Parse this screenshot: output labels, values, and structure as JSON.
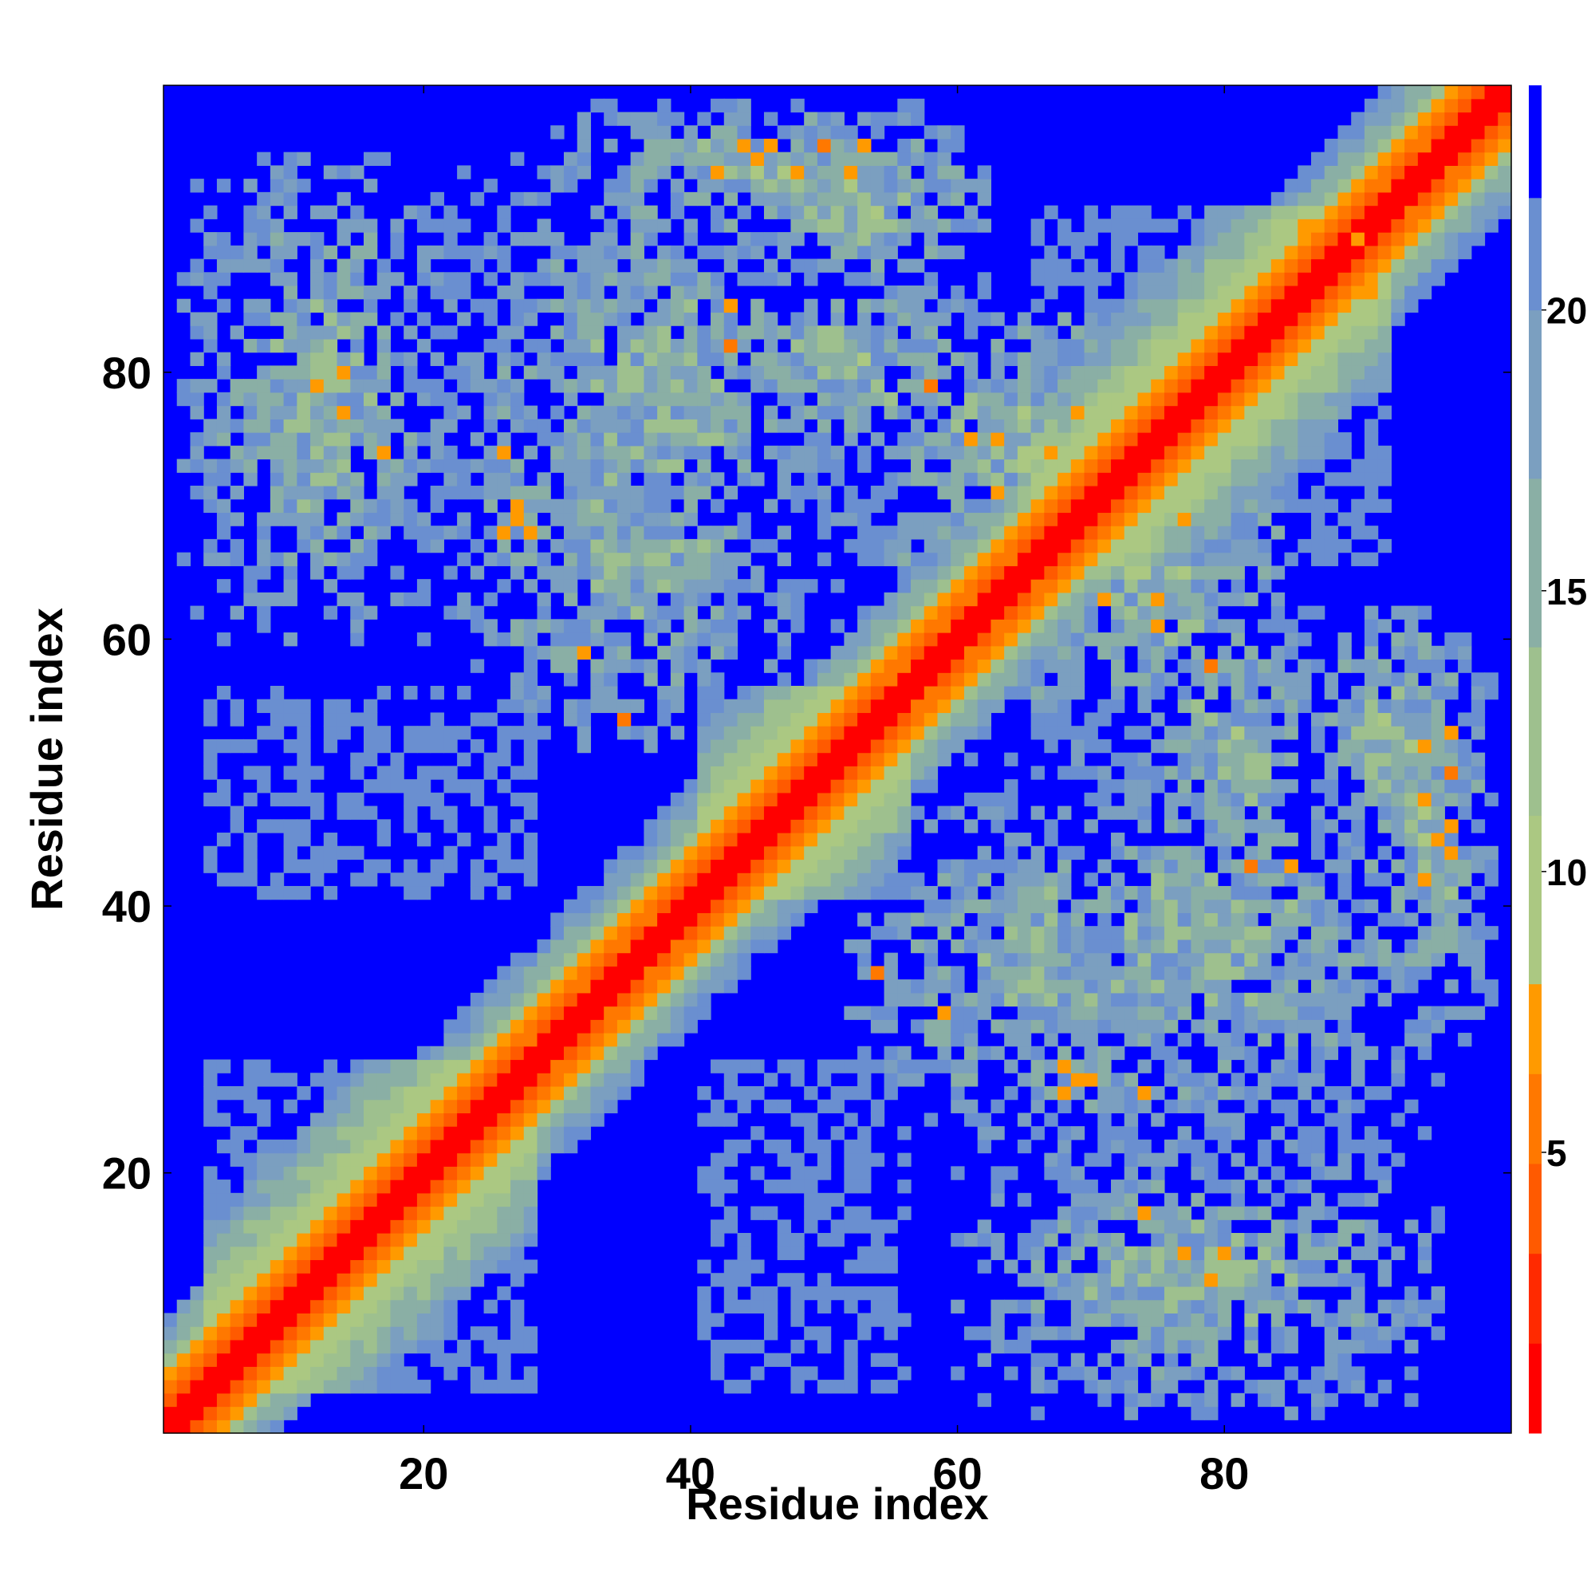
{
  "chart_data": {
    "type": "heatmap",
    "title": "",
    "xlabel": "Residue index",
    "ylabel": "Residue index",
    "n_residues": 101,
    "xlim": [
      0.5,
      101.5
    ],
    "ylim": [
      0.5,
      101.5
    ],
    "x_ticks": [
      20,
      40,
      60,
      80
    ],
    "y_ticks": [
      20,
      40,
      60,
      80
    ],
    "grid": false,
    "description_of_values": "distance-like contact map; symmetric about the diagonal",
    "cutoff": 22,
    "above_cutoff_color": "#0000ff",
    "colorbar": {
      "position": "right",
      "range": [
        0,
        24
      ],
      "ticks": [
        5,
        10,
        15,
        20
      ],
      "bands": [
        {
          "from": 0,
          "to": 1.6,
          "color": "#ff0000"
        },
        {
          "from": 1.6,
          "to": 3.2,
          "color": "#ff2a00"
        },
        {
          "from": 3.2,
          "to": 4.8,
          "color": "#ff5a00"
        },
        {
          "from": 4.8,
          "to": 6.4,
          "color": "#ff7800"
        },
        {
          "from": 6.4,
          "to": 8.0,
          "color": "#ff9a00"
        },
        {
          "from": 8.0,
          "to": 11.0,
          "color": "#abc882"
        },
        {
          "from": 11.0,
          "to": 14.0,
          "color": "#9ec08e"
        },
        {
          "from": 14.0,
          "to": 17.0,
          "color": "#8aafa5"
        },
        {
          "from": 17.0,
          "to": 20.0,
          "color": "#7b9fc0"
        },
        {
          "from": 20.0,
          "to": 22.0,
          "color": "#6a8fd0"
        },
        {
          "from": 22.0,
          "to": 24.0,
          "color": "#0000ff"
        }
      ]
    },
    "backbone_distance": {
      "per_residue_far": 3.8,
      "helix_regions": [
        [
          4,
          28
        ],
        [
          41,
          56
        ],
        [
          66,
          92
        ]
      ]
    },
    "contact_clusters": [
      {
        "i": [
          2,
          22
        ],
        "j": [
          60,
          96
        ],
        "d": 15
      },
      {
        "i": [
          22,
          52
        ],
        "j": [
          60,
          96
        ],
        "d": 15
      },
      {
        "i": [
          44,
          62
        ],
        "j": [
          86,
          100
        ],
        "d": 14
      },
      {
        "i": [
          52,
          82
        ],
        "j": [
          22,
          48
        ],
        "d": 15
      },
      {
        "i": [
          66,
          90
        ],
        "j": [
          4,
          20
        ],
        "d": 16
      },
      {
        "i": [
          74,
          88
        ],
        "j": [
          38,
          66
        ],
        "d": 15
      },
      {
        "i": [
          90,
          100
        ],
        "j": [
          30,
          62
        ],
        "d": 14
      },
      {
        "i": [
          56,
          78
        ],
        "j": [
          66,
          84
        ],
        "d": 12
      }
    ],
    "close_contacts": [
      [
        26,
        68,
        6
      ],
      [
        27,
        69,
        6
      ],
      [
        14,
        80,
        6
      ],
      [
        17,
        74,
        6
      ],
      [
        32,
        59,
        6
      ],
      [
        35,
        54,
        6
      ],
      [
        44,
        97,
        6
      ],
      [
        46,
        97,
        6
      ],
      [
        50,
        97,
        6
      ],
      [
        53,
        97,
        6
      ],
      [
        43,
        85,
        6
      ],
      [
        43,
        82,
        6
      ],
      [
        58,
        79,
        6
      ],
      [
        61,
        75,
        6
      ],
      [
        69,
        77,
        6
      ],
      [
        71,
        63,
        6
      ],
      [
        75,
        63,
        6
      ],
      [
        68,
        28,
        6
      ],
      [
        70,
        27,
        6
      ],
      [
        74,
        26,
        6
      ],
      [
        77,
        14,
        6
      ],
      [
        79,
        12,
        6
      ],
      [
        95,
        52,
        6
      ],
      [
        95,
        48,
        6
      ],
      [
        96,
        45,
        6
      ],
      [
        95,
        42,
        6
      ],
      [
        91,
        86,
        6
      ],
      [
        90,
        90,
        6
      ]
    ]
  }
}
